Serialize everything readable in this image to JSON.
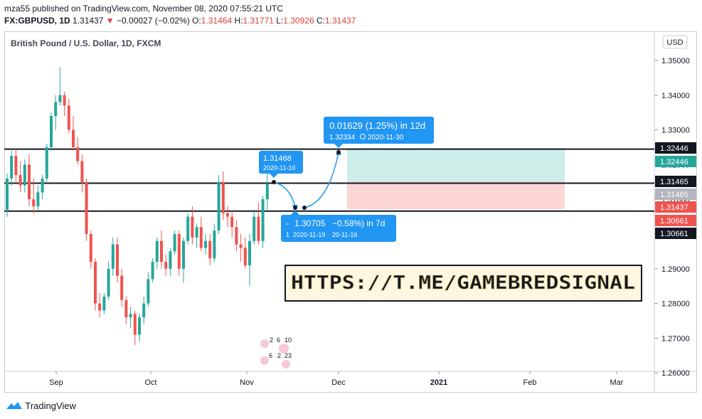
{
  "header": {
    "published_line": "mza55 published on TradingView.com, November 08, 2020 07:55:21 UTC",
    "symbol": "FX:GBPUSD, 1D",
    "last": "1.31437",
    "change_arrow": "▼",
    "change": "−0.00027 (−0.02%)",
    "o_label": "O:",
    "o_value": "1.31464",
    "h_label": "H:",
    "h_value": "1.31771",
    "l_label": "L:",
    "l_value": "1.30926",
    "c_label": "C:",
    "c_value": "1.31437"
  },
  "chart_title": "British Pound / U.S. Dollar, 1D, FXCM",
  "currency_button": "USD",
  "watermark_text": "HTTPS://T.ME/GAMEBREDSIGNAL",
  "footer_brand": "TradingView",
  "colors": {
    "up": "#26a69a",
    "down": "#ef5350",
    "tooltip": "#2196f3",
    "profit_zone": "#cdeee9",
    "loss_zone": "#fcd5d5",
    "dark": "#131722"
  },
  "annotations": {
    "target_box": {
      "line1": "0.01629 (1.25%) in 12d",
      "line2": "1.32334",
      "line2_date": "2020-11-30"
    },
    "entry_box": {
      "line1": "1.31468",
      "line2": "2020-11-10"
    },
    "dip_box": {
      "line1a": "-",
      "line1b": "1.30705",
      "line1c": "−0.58%) in 7d",
      "line2a": "1",
      "line2b": "2020-11-19",
      "line2c": "20-11-16"
    },
    "event_numbers": [
      "2",
      "6",
      "10",
      "6",
      "2",
      "23"
    ]
  },
  "price_labels": [
    {
      "value": "1.32446",
      "style": "dark"
    },
    {
      "value": "1.32446",
      "style": "green"
    },
    {
      "value": "1.31465",
      "style": "dark"
    },
    {
      "value": "1.31465",
      "style": "grey"
    },
    {
      "value": "1.31437",
      "style": "red"
    },
    {
      "value": "1.30661",
      "style": "red"
    },
    {
      "value": "1.30661",
      "style": "dark"
    }
  ],
  "chart_data": {
    "type": "candlestick",
    "title": "British Pound / U.S. Dollar, 1D, FXCM",
    "y_ticks": [
      "1.35000",
      "1.34000",
      "1.33000",
      "1.32000",
      "1.31000",
      "1.30000",
      "1.29000",
      "1.28000",
      "1.27000",
      "1.26000"
    ],
    "x_ticks": [
      "Sep",
      "Oct",
      "Nov",
      "Dec",
      "2021",
      "Feb",
      "Mar"
    ],
    "ylim": [
      1.258,
      1.358
    ],
    "horizontal_lines": [
      1.32446,
      1.31465,
      1.30661
    ],
    "candles": [
      [
        1.307,
        1.3175,
        1.305,
        1.316
      ],
      [
        1.316,
        1.324,
        1.314,
        1.3225
      ],
      [
        1.3225,
        1.3245,
        1.315,
        1.317
      ],
      [
        1.317,
        1.321,
        1.312,
        1.314
      ],
      [
        1.314,
        1.3215,
        1.312,
        1.32
      ],
      [
        1.32,
        1.323,
        1.308,
        1.31
      ],
      [
        1.31,
        1.316,
        1.306,
        1.308
      ],
      [
        1.308,
        1.314,
        1.307,
        1.312
      ],
      [
        1.312,
        1.317,
        1.31,
        1.316
      ],
      [
        1.316,
        1.326,
        1.315,
        1.325
      ],
      [
        1.325,
        1.335,
        1.324,
        1.334
      ],
      [
        1.334,
        1.34,
        1.33,
        1.338
      ],
      [
        1.338,
        1.348,
        1.337,
        1.34
      ],
      [
        1.34,
        1.341,
        1.334,
        1.337
      ],
      [
        1.337,
        1.339,
        1.329,
        1.33
      ],
      [
        1.33,
        1.334,
        1.324,
        1.325
      ],
      [
        1.325,
        1.328,
        1.32,
        1.321
      ],
      [
        1.321,
        1.323,
        1.312,
        1.315
      ],
      [
        1.315,
        1.316,
        1.298,
        1.3
      ],
      [
        1.3,
        1.301,
        1.29,
        1.292
      ],
      [
        1.292,
        1.293,
        1.278,
        1.28
      ],
      [
        1.28,
        1.283,
        1.276,
        1.278
      ],
      [
        1.278,
        1.283,
        1.277,
        1.282
      ],
      [
        1.282,
        1.292,
        1.281,
        1.29
      ],
      [
        1.29,
        1.299,
        1.288,
        1.297
      ],
      [
        1.297,
        1.299,
        1.286,
        1.288
      ],
      [
        1.288,
        1.29,
        1.279,
        1.281
      ],
      [
        1.281,
        1.282,
        1.274,
        1.276
      ],
      [
        1.276,
        1.279,
        1.273,
        1.277
      ],
      [
        1.277,
        1.278,
        1.268,
        1.271
      ],
      [
        1.271,
        1.277,
        1.269,
        1.276
      ],
      [
        1.276,
        1.282,
        1.274,
        1.28
      ],
      [
        1.28,
        1.289,
        1.279,
        1.287
      ],
      [
        1.287,
        1.293,
        1.286,
        1.292
      ],
      [
        1.292,
        1.299,
        1.29,
        1.298
      ],
      [
        1.298,
        1.301,
        1.29,
        1.292
      ],
      [
        1.292,
        1.294,
        1.288,
        1.29
      ],
      [
        1.29,
        1.296,
        1.288,
        1.295
      ],
      [
        1.295,
        1.301,
        1.294,
        1.3
      ],
      [
        1.3,
        1.301,
        1.288,
        1.29
      ],
      [
        1.29,
        1.299,
        1.286,
        1.298
      ],
      [
        1.298,
        1.306,
        1.297,
        1.305
      ],
      [
        1.305,
        1.308,
        1.297,
        1.299
      ],
      [
        1.299,
        1.303,
        1.296,
        1.302
      ],
      [
        1.302,
        1.305,
        1.295,
        1.296
      ],
      [
        1.296,
        1.3,
        1.294,
        1.298
      ],
      [
        1.298,
        1.3,
        1.291,
        1.293
      ],
      [
        1.293,
        1.303,
        1.292,
        1.301
      ],
      [
        1.301,
        1.317,
        1.3,
        1.315
      ],
      [
        1.315,
        1.318,
        1.304,
        1.306
      ],
      [
        1.306,
        1.308,
        1.302,
        1.305
      ],
      [
        1.305,
        1.307,
        1.299,
        1.302
      ],
      [
        1.302,
        1.304,
        1.295,
        1.297
      ],
      [
        1.297,
        1.3,
        1.292,
        1.296
      ],
      [
        1.296,
        1.299,
        1.29,
        1.291
      ],
      [
        1.291,
        1.3,
        1.285,
        1.298
      ],
      [
        1.298,
        1.307,
        1.297,
        1.305
      ],
      [
        1.305,
        1.309,
        1.297,
        1.298
      ],
      [
        1.298,
        1.311,
        1.296,
        1.31
      ],
      [
        1.31,
        1.318,
        1.307,
        1.3145
      ]
    ]
  }
}
